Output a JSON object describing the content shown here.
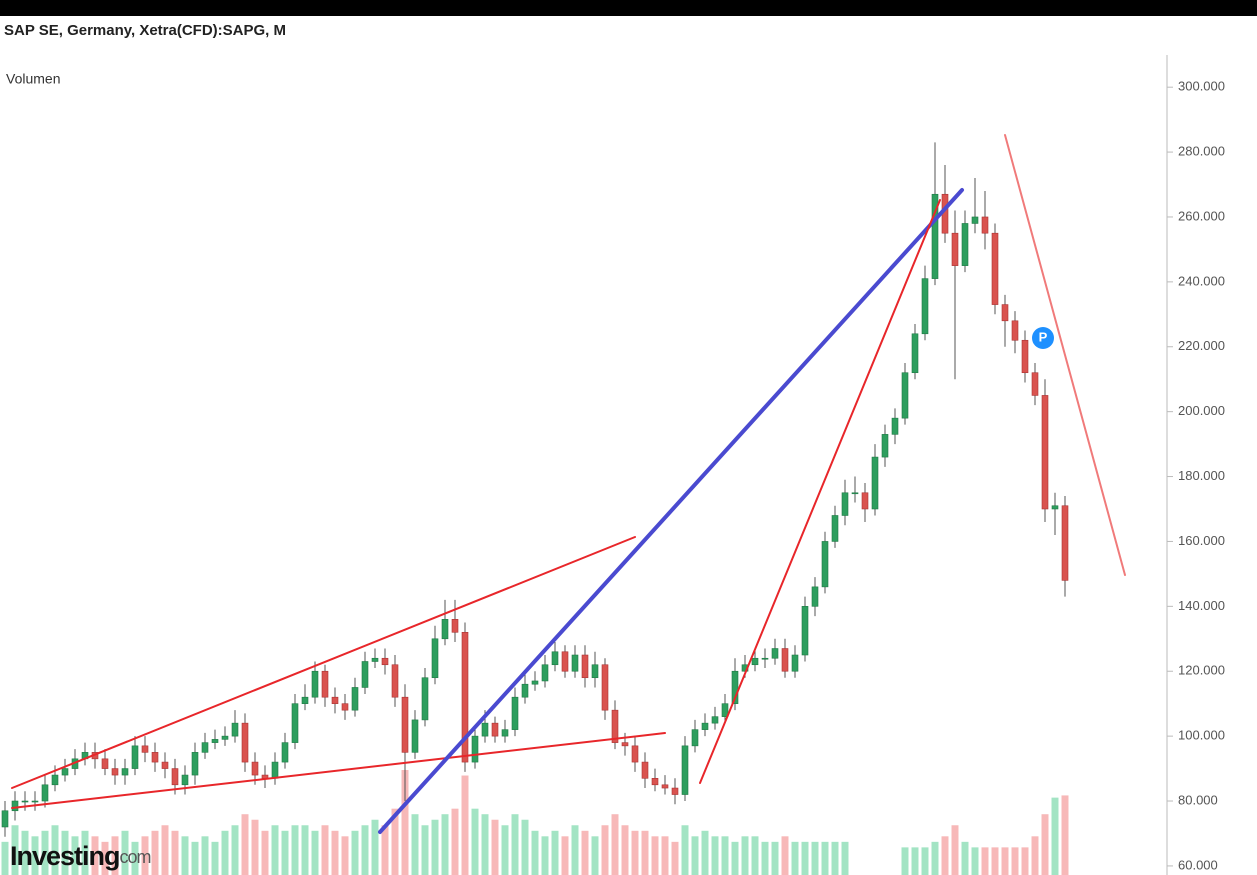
{
  "chart_data": {
    "type": "candlestick",
    "title": "SAP SE, Germany, Xetra(CFD):SAPG, M",
    "volume_label": "Volumen",
    "logo": "Investing",
    "logo_suffix": "com",
    "marker_label": "P",
    "up_color": "#2e9e5e",
    "down_color": "#d9534f",
    "volume_up_color": "#a3e4c4",
    "volume_down_color": "#f7b8b8",
    "ylim": [
      57.2,
      313
    ],
    "yticks": [
      {
        "value": 60,
        "label": "60.000"
      },
      {
        "value": 80,
        "label": "80.000"
      },
      {
        "value": 100,
        "label": "100.000"
      },
      {
        "value": 120,
        "label": "120.000"
      },
      {
        "value": 140,
        "label": "140.000"
      },
      {
        "value": 160,
        "label": "160.000"
      },
      {
        "value": 180,
        "label": "180.000"
      },
      {
        "value": 200,
        "label": "200.000"
      },
      {
        "value": 220,
        "label": "220.000"
      },
      {
        "value": 240,
        "label": "240.000"
      },
      {
        "value": 260,
        "label": "260.000"
      },
      {
        "value": 280,
        "label": "280.000"
      },
      {
        "value": 300,
        "label": "300.000"
      }
    ],
    "open": [
      72,
      77,
      80,
      80,
      80,
      85,
      88,
      90,
      93,
      95,
      93,
      90,
      88,
      90,
      97,
      95,
      92,
      90,
      85,
      88,
      95,
      98,
      99,
      100,
      104,
      92,
      88,
      87,
      92,
      98,
      110,
      112,
      120,
      112,
      110,
      108,
      115,
      123,
      124,
      122,
      112,
      95,
      105,
      118,
      130,
      136,
      132,
      92,
      100,
      104,
      100,
      102,
      112,
      116,
      117,
      122,
      126,
      120,
      125,
      118,
      122,
      108,
      98,
      97,
      92,
      87,
      85,
      84,
      82,
      97,
      102,
      104,
      106,
      110,
      120,
      122,
      124,
      124,
      127,
      120,
      125,
      140,
      146,
      160,
      168,
      175,
      175,
      170,
      186,
      193,
      198,
      212,
      224,
      241,
      267,
      255,
      245,
      258,
      260,
      255,
      233,
      228,
      222,
      212,
      205,
      170,
      171
    ],
    "high": [
      80,
      83,
      83,
      83,
      88,
      91,
      93,
      96,
      98,
      98,
      96,
      93,
      93,
      100,
      100,
      98,
      95,
      93,
      91,
      98,
      101,
      102,
      103,
      108,
      107,
      95,
      91,
      95,
      101,
      113,
      116,
      123,
      122,
      115,
      113,
      118,
      126,
      127,
      127,
      125,
      116,
      108,
      121,
      134,
      142,
      142,
      135,
      103,
      108,
      106,
      105,
      115,
      119,
      120,
      125,
      129,
      128,
      128,
      128,
      126,
      124,
      111,
      101,
      100,
      95,
      90,
      88,
      87,
      100,
      105,
      107,
      109,
      113,
      124,
      125,
      127,
      127,
      130,
      130,
      128,
      143,
      149,
      163,
      171,
      179,
      180,
      178,
      190,
      196,
      201,
      215,
      227,
      245,
      283,
      276,
      262,
      262,
      272,
      268,
      258,
      236,
      231,
      225,
      215,
      210,
      175,
      174
    ],
    "low": [
      69,
      74,
      77,
      77,
      78,
      83,
      86,
      88,
      91,
      90,
      88,
      85,
      85,
      88,
      92,
      89,
      87,
      82,
      82,
      85,
      93,
      96,
      97,
      98,
      89,
      85,
      84,
      85,
      90,
      96,
      108,
      110,
      109,
      107,
      105,
      106,
      113,
      121,
      119,
      109,
      80,
      93,
      103,
      116,
      128,
      129,
      89,
      90,
      98,
      98,
      98,
      100,
      110,
      114,
      115,
      120,
      118,
      118,
      115,
      115,
      105,
      96,
      94,
      89,
      84,
      83,
      82,
      79,
      80,
      95,
      100,
      102,
      104,
      108,
      118,
      120,
      121,
      122,
      118,
      118,
      123,
      137,
      144,
      158,
      165,
      172,
      166,
      168,
      183,
      190,
      196,
      210,
      222,
      239,
      252,
      210,
      243,
      255,
      250,
      230,
      220,
      218,
      209,
      202,
      166,
      162,
      143
    ],
    "close": [
      77,
      80,
      80,
      80,
      85,
      88,
      90,
      93,
      95,
      93,
      90,
      88,
      90,
      97,
      95,
      92,
      90,
      85,
      88,
      95,
      98,
      99,
      100,
      104,
      92,
      88,
      87,
      92,
      98,
      110,
      112,
      120,
      112,
      110,
      108,
      115,
      123,
      124,
      122,
      112,
      95,
      105,
      118,
      130,
      136,
      132,
      92,
      100,
      104,
      100,
      102,
      112,
      116,
      117,
      122,
      126,
      120,
      125,
      118,
      122,
      108,
      98,
      97,
      92,
      87,
      85,
      84,
      82,
      97,
      102,
      104,
      106,
      110,
      120,
      122,
      124,
      124,
      127,
      120,
      125,
      140,
      146,
      160,
      168,
      175,
      175,
      170,
      186,
      193,
      198,
      212,
      224,
      241,
      267,
      255,
      245,
      258,
      260,
      255,
      233,
      228,
      222,
      212,
      205,
      170,
      171,
      148
    ],
    "volume": [
      30,
      45,
      40,
      35,
      40,
      45,
      40,
      35,
      40,
      35,
      30,
      35,
      40,
      30,
      35,
      40,
      45,
      40,
      35,
      30,
      35,
      30,
      40,
      45,
      55,
      50,
      40,
      45,
      40,
      45,
      45,
      40,
      45,
      40,
      35,
      40,
      45,
      50,
      45,
      60,
      95,
      55,
      45,
      50,
      55,
      60,
      90,
      60,
      55,
      50,
      45,
      55,
      50,
      40,
      35,
      40,
      35,
      45,
      40,
      35,
      45,
      55,
      45,
      40,
      40,
      35,
      35,
      30,
      45,
      35,
      40,
      35,
      35,
      30,
      35,
      35,
      30,
      30,
      35,
      30,
      30,
      30,
      30,
      30,
      30,
      null,
      null,
      null,
      null,
      null,
      25,
      25,
      25,
      30,
      35,
      45,
      30,
      25,
      25,
      25,
      25,
      25,
      25,
      35,
      55,
      70,
      72
    ]
  }
}
